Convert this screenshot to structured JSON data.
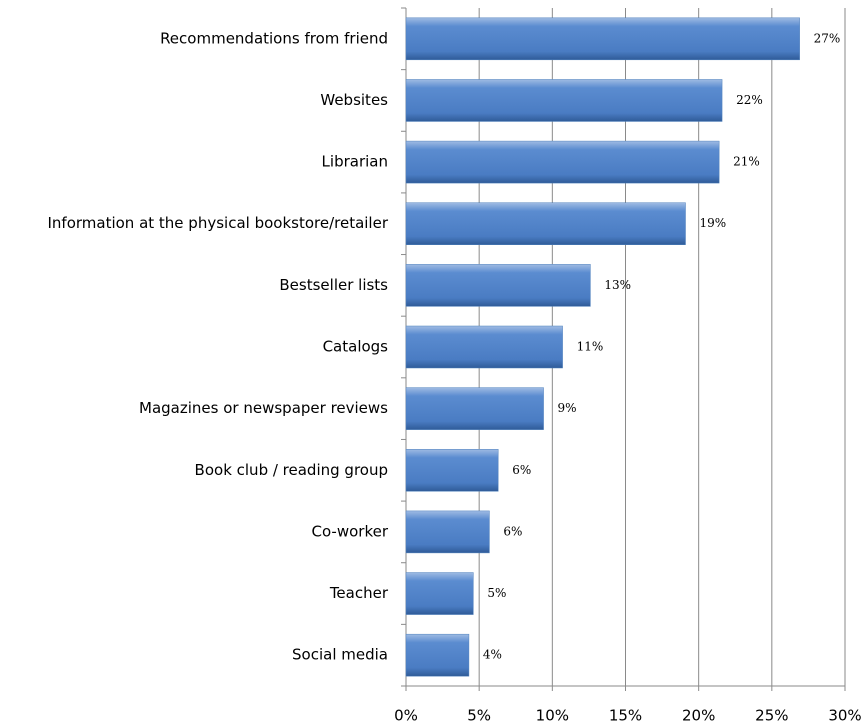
{
  "chart_data": {
    "type": "bar",
    "orientation": "horizontal",
    "categories": [
      "Recommendations from friend",
      "Websites",
      "Librarian",
      "Information at the physical bookstore/retailer",
      "Bestseller lists",
      "Catalogs",
      "Magazines or newspaper reviews",
      "Book club / reading group",
      "Co-worker",
      "Teacher",
      "Social media"
    ],
    "values": [
      26.9,
      21.6,
      21.4,
      19.1,
      12.6,
      10.7,
      9.4,
      6.3,
      5.7,
      4.6,
      4.3
    ],
    "value_labels": [
      "27%",
      "22%",
      "21%",
      "19%",
      "13%",
      "11%",
      "9%",
      "6%",
      "6%",
      "5%",
      "4%"
    ],
    "color": "#4f81bd",
    "xlim": [
      0,
      30
    ],
    "xticks": [
      {
        "value": 0,
        "label": "0%"
      },
      {
        "value": 5,
        "label": "5%"
      },
      {
        "value": 10,
        "label": "10%"
      },
      {
        "value": 15,
        "label": "15%"
      },
      {
        "value": 20,
        "label": "20%"
      },
      {
        "value": 25,
        "label": "25%"
      },
      {
        "value": 30,
        "label": "30%"
      }
    ],
    "grid": true
  }
}
